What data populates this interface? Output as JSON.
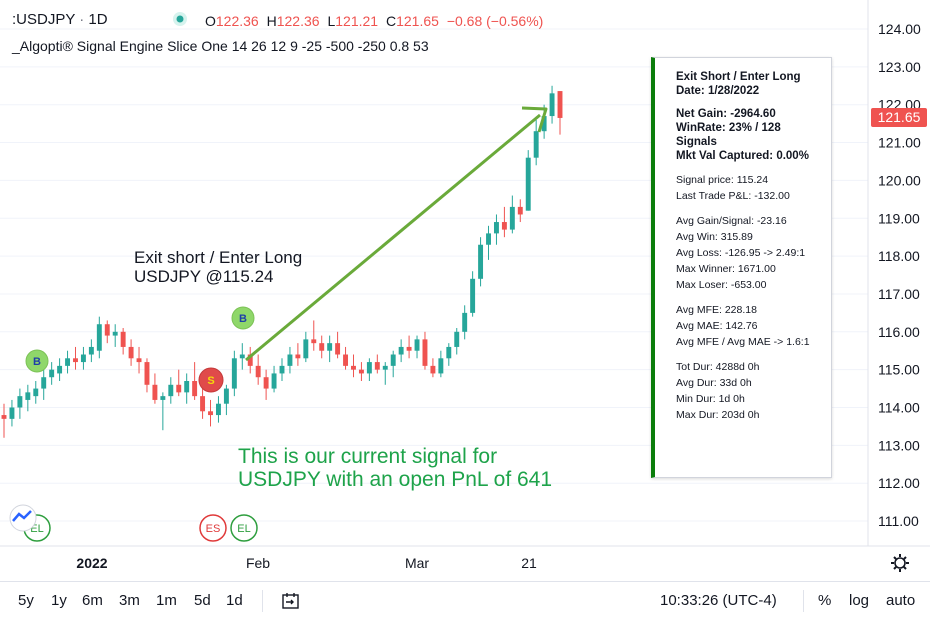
{
  "header": {
    "symbol": ":USDJPY",
    "interval": "1D",
    "open_label": "O",
    "open": "122.36",
    "high_label": "H",
    "high": "122.36",
    "low_label": "L",
    "low": "121.21",
    "close_label": "C",
    "close": "121.65",
    "change": "−0.68 (−0.56%)"
  },
  "indicator": {
    "name": "_Algopti® Signal Engine Slice One",
    "params": "14 26 12 9 -25 -500 -250 0.8 53"
  },
  "price_axis": {
    "ticks": [
      "124.00",
      "123.00",
      "122.00",
      "121.00",
      "120.00",
      "119.00",
      "118.00",
      "117.00",
      "116.00",
      "115.00",
      "114.00",
      "113.00",
      "112.00",
      "111.00"
    ],
    "current_price": "121.65",
    "current_color": "#ef5350"
  },
  "time_axis": {
    "labels": [
      "2022",
      "Feb",
      "Mar",
      "21"
    ]
  },
  "annotations": {
    "entry_text_1": "Exit short / Enter Long",
    "entry_text_2": "USDJPY @115.24",
    "current_text_1": "This is our current signal for",
    "current_text_2": "USDJPY with an open PnL of 641",
    "current_text_color": "#1ea34a",
    "arrow_color": "#6aaa3a"
  },
  "markers": {
    "buy_label": "B",
    "sell_label": "S",
    "el_label": "EL",
    "es_label": "ES"
  },
  "stats": {
    "title": "Exit Short / Enter Long",
    "date": "Date: 1/28/2022",
    "net_gain": "Net Gain: -2964.60",
    "winrate": "WinRate: 23% / 128",
    "signals": "Signals",
    "mkt_val": "Mkt Val Captured: 0.00%",
    "signal_price": "Signal price: 115.24",
    "last_trade": "Last Trade P&L: -132.00",
    "avg_gain": "Avg Gain/Signal: -23.16",
    "avg_win": "Avg Win: 315.89",
    "avg_loss": "Avg Loss: -126.95 -> 2.49:1",
    "max_winner": "Max Winner: 1671.00",
    "max_loser": "Max Loser: -653.00",
    "avg_mfe": "Avg MFE: 228.18",
    "avg_mae": "Avg MAE: 142.76",
    "mfe_mae": "Avg MFE / Avg MAE -> 1.6:1",
    "tot_dur": "Tot Dur: 4288d 0h",
    "avg_dur": "Avg Dur: 33d 0h",
    "min_dur": "Min Dur: 1d 0h",
    "max_dur": "Max Dur: 203d 0h"
  },
  "bottom_bar": {
    "timeframes": [
      "5y",
      "1y",
      "6m",
      "3m",
      "1m",
      "5d",
      "1d"
    ],
    "time": "10:33:26 (UTC-4)",
    "percent": "%",
    "log": "log",
    "auto": "auto"
  },
  "colors": {
    "up": "#26a69a",
    "down": "#ef5350",
    "accent_green": "#0b7d0b"
  },
  "chart_data": {
    "type": "candlestick",
    "ylim": [
      110.4,
      124.5
    ],
    "x_labels": [
      "2022",
      "Feb",
      "Mar",
      "21"
    ],
    "candles": [
      {
        "o": 113.8,
        "h": 114.1,
        "l": 113.2,
        "c": 113.7
      },
      {
        "o": 113.7,
        "h": 114.2,
        "l": 113.5,
        "c": 114.0
      },
      {
        "o": 114.0,
        "h": 114.5,
        "l": 113.7,
        "c": 114.3
      },
      {
        "o": 114.2,
        "h": 114.6,
        "l": 113.9,
        "c": 114.4
      },
      {
        "o": 114.3,
        "h": 114.7,
        "l": 114.1,
        "c": 114.5
      },
      {
        "o": 114.5,
        "h": 115.0,
        "l": 114.2,
        "c": 114.8
      },
      {
        "o": 114.8,
        "h": 115.2,
        "l": 114.6,
        "c": 115.0
      },
      {
        "o": 114.9,
        "h": 115.3,
        "l": 114.7,
        "c": 115.1
      },
      {
        "o": 115.1,
        "h": 115.5,
        "l": 114.9,
        "c": 115.3
      },
      {
        "o": 115.3,
        "h": 115.6,
        "l": 115.0,
        "c": 115.2
      },
      {
        "o": 115.2,
        "h": 115.6,
        "l": 115.0,
        "c": 115.4
      },
      {
        "o": 115.4,
        "h": 115.8,
        "l": 115.2,
        "c": 115.6
      },
      {
        "o": 115.5,
        "h": 116.4,
        "l": 115.3,
        "c": 116.2
      },
      {
        "o": 116.2,
        "h": 116.3,
        "l": 115.7,
        "c": 115.9
      },
      {
        "o": 115.9,
        "h": 116.2,
        "l": 115.6,
        "c": 116.0
      },
      {
        "o": 116.0,
        "h": 116.1,
        "l": 115.4,
        "c": 115.6
      },
      {
        "o": 115.6,
        "h": 115.8,
        "l": 115.1,
        "c": 115.3
      },
      {
        "o": 115.3,
        "h": 115.6,
        "l": 114.9,
        "c": 115.2
      },
      {
        "o": 115.2,
        "h": 115.3,
        "l": 114.4,
        "c": 114.6
      },
      {
        "o": 114.6,
        "h": 114.9,
        "l": 114.1,
        "c": 114.2
      },
      {
        "o": 114.2,
        "h": 114.4,
        "l": 113.4,
        "c": 114.3
      },
      {
        "o": 114.3,
        "h": 114.8,
        "l": 114.1,
        "c": 114.6
      },
      {
        "o": 114.6,
        "h": 115.0,
        "l": 114.3,
        "c": 114.4
      },
      {
        "o": 114.4,
        "h": 114.9,
        "l": 114.1,
        "c": 114.7
      },
      {
        "o": 114.7,
        "h": 115.2,
        "l": 114.2,
        "c": 114.3
      },
      {
        "o": 114.3,
        "h": 114.5,
        "l": 113.7,
        "c": 113.9
      },
      {
        "o": 113.9,
        "h": 114.2,
        "l": 113.5,
        "c": 113.8
      },
      {
        "o": 113.8,
        "h": 114.3,
        "l": 113.6,
        "c": 114.1
      },
      {
        "o": 114.1,
        "h": 114.6,
        "l": 113.8,
        "c": 114.5
      },
      {
        "o": 114.5,
        "h": 115.5,
        "l": 114.3,
        "c": 115.3
      },
      {
        "o": 115.3,
        "h": 115.7,
        "l": 115.0,
        "c": 115.4
      },
      {
        "o": 115.4,
        "h": 115.6,
        "l": 114.9,
        "c": 115.1
      },
      {
        "o": 115.1,
        "h": 115.4,
        "l": 114.6,
        "c": 114.8
      },
      {
        "o": 114.8,
        "h": 115.0,
        "l": 114.2,
        "c": 114.5
      },
      {
        "o": 114.5,
        "h": 115.1,
        "l": 114.4,
        "c": 114.9
      },
      {
        "o": 114.9,
        "h": 115.3,
        "l": 114.7,
        "c": 115.1
      },
      {
        "o": 115.1,
        "h": 115.6,
        "l": 114.9,
        "c": 115.4
      },
      {
        "o": 115.4,
        "h": 115.7,
        "l": 115.1,
        "c": 115.3
      },
      {
        "o": 115.3,
        "h": 116.0,
        "l": 115.2,
        "c": 115.8
      },
      {
        "o": 115.8,
        "h": 116.3,
        "l": 115.5,
        "c": 115.7
      },
      {
        "o": 115.7,
        "h": 115.9,
        "l": 115.3,
        "c": 115.5
      },
      {
        "o": 115.5,
        "h": 115.9,
        "l": 115.2,
        "c": 115.7
      },
      {
        "o": 115.7,
        "h": 116.0,
        "l": 115.3,
        "c": 115.4
      },
      {
        "o": 115.4,
        "h": 115.6,
        "l": 115.0,
        "c": 115.1
      },
      {
        "o": 115.1,
        "h": 115.4,
        "l": 114.8,
        "c": 115.0
      },
      {
        "o": 115.0,
        "h": 115.2,
        "l": 114.7,
        "c": 114.9
      },
      {
        "o": 114.9,
        "h": 115.3,
        "l": 114.7,
        "c": 115.2
      },
      {
        "o": 115.2,
        "h": 115.4,
        "l": 114.9,
        "c": 115.0
      },
      {
        "o": 115.0,
        "h": 115.2,
        "l": 114.6,
        "c": 115.1
      },
      {
        "o": 115.1,
        "h": 115.5,
        "l": 114.8,
        "c": 115.4
      },
      {
        "o": 115.4,
        "h": 115.8,
        "l": 115.2,
        "c": 115.6
      },
      {
        "o": 115.6,
        "h": 115.9,
        "l": 115.3,
        "c": 115.5
      },
      {
        "o": 115.5,
        "h": 115.9,
        "l": 115.3,
        "c": 115.8
      },
      {
        "o": 115.8,
        "h": 116.0,
        "l": 115.0,
        "c": 115.1
      },
      {
        "o": 115.1,
        "h": 115.3,
        "l": 114.8,
        "c": 114.9
      },
      {
        "o": 114.9,
        "h": 115.5,
        "l": 114.8,
        "c": 115.3
      },
      {
        "o": 115.3,
        "h": 115.7,
        "l": 115.1,
        "c": 115.6
      },
      {
        "o": 115.6,
        "h": 116.1,
        "l": 115.4,
        "c": 116.0
      },
      {
        "o": 116.0,
        "h": 116.7,
        "l": 115.8,
        "c": 116.5
      },
      {
        "o": 116.5,
        "h": 117.6,
        "l": 116.4,
        "c": 117.4
      },
      {
        "o": 117.4,
        "h": 118.5,
        "l": 117.2,
        "c": 118.3
      },
      {
        "o": 118.3,
        "h": 118.8,
        "l": 117.9,
        "c": 118.6
      },
      {
        "o": 118.6,
        "h": 119.1,
        "l": 118.3,
        "c": 118.9
      },
      {
        "o": 118.9,
        "h": 119.3,
        "l": 118.5,
        "c": 118.7
      },
      {
        "o": 118.7,
        "h": 119.6,
        "l": 118.6,
        "c": 119.3
      },
      {
        "o": 119.3,
        "h": 119.5,
        "l": 118.9,
        "c": 119.1
      },
      {
        "o": 119.2,
        "h": 120.8,
        "l": 119.2,
        "c": 120.6
      },
      {
        "o": 120.6,
        "h": 121.6,
        "l": 120.4,
        "c": 121.3
      },
      {
        "o": 121.3,
        "h": 122.0,
        "l": 121.1,
        "c": 121.7
      },
      {
        "o": 121.7,
        "h": 122.5,
        "l": 121.5,
        "c": 122.3
      },
      {
        "o": 122.36,
        "h": 122.36,
        "l": 121.21,
        "c": 121.65
      }
    ]
  }
}
